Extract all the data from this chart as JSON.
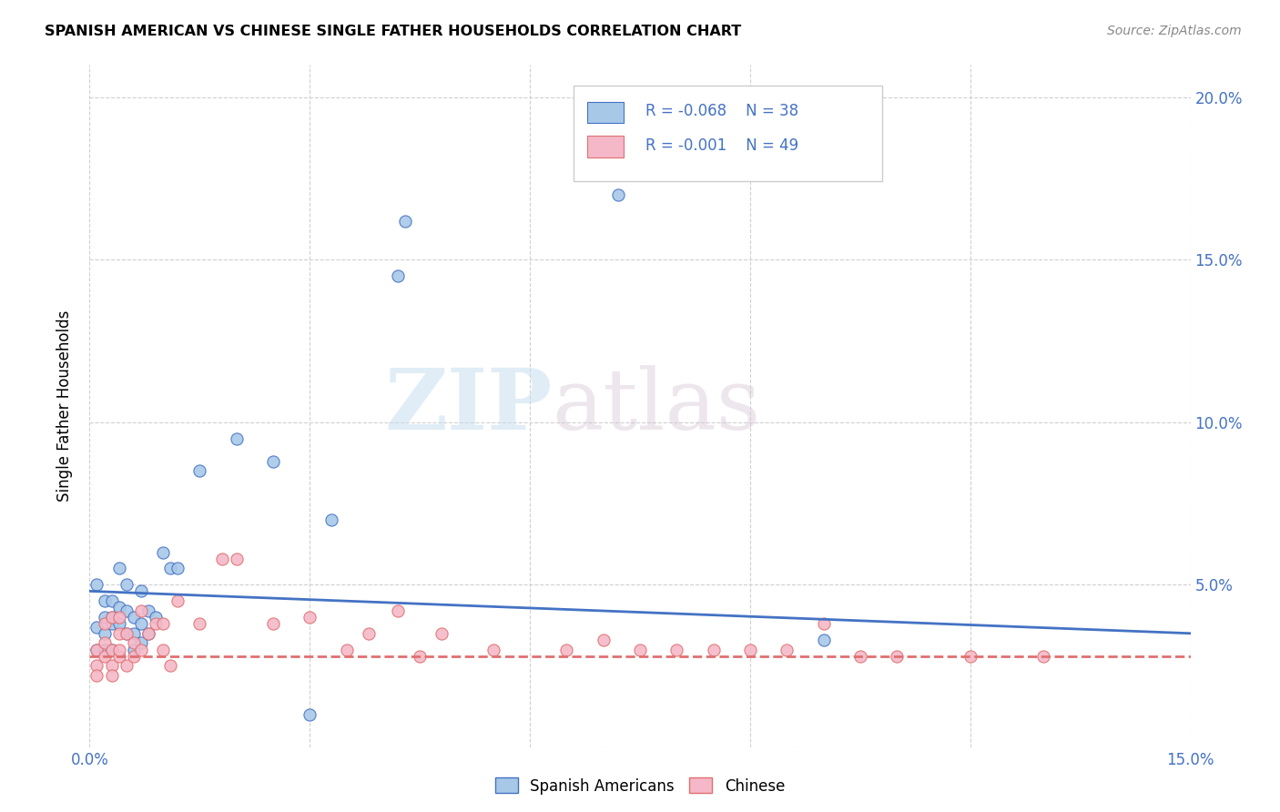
{
  "title": "SPANISH AMERICAN VS CHINESE SINGLE FATHER HOUSEHOLDS CORRELATION CHART",
  "source": "Source: ZipAtlas.com",
  "ylabel": "Single Father Households",
  "xlim": [
    0.0,
    0.15
  ],
  "ylim": [
    0.0,
    0.21
  ],
  "xticks": [
    0.0,
    0.03,
    0.06,
    0.09,
    0.12,
    0.15
  ],
  "xtick_labels": [
    "0.0%",
    "",
    "",
    "",
    "",
    "15.0%"
  ],
  "yticks": [
    0.0,
    0.05,
    0.1,
    0.15,
    0.2
  ],
  "ytick_labels_right": [
    "",
    "5.0%",
    "10.0%",
    "15.0%",
    "20.0%"
  ],
  "background_color": "#ffffff",
  "watermark_zip": "ZIP",
  "watermark_atlas": "atlas",
  "legend_r1": "R = -0.068",
  "legend_n1": "N = 38",
  "legend_r2": "R = -0.001",
  "legend_n2": "N = 49",
  "blue_fill": "#a8c8e8",
  "pink_fill": "#f4b8c8",
  "line_blue": "#4472c4",
  "line_pink": "#e07070",
  "text_blue": "#4472c4",
  "grid_color": "#d0d0d0",
  "blue_trend_start": 0.048,
  "blue_trend_end": 0.035,
  "pink_trend_start": 0.028,
  "pink_trend_end": 0.028,
  "sa_x": [
    0.001,
    0.001,
    0.001,
    0.002,
    0.002,
    0.002,
    0.002,
    0.003,
    0.003,
    0.003,
    0.003,
    0.004,
    0.004,
    0.004,
    0.005,
    0.005,
    0.005,
    0.006,
    0.006,
    0.006,
    0.007,
    0.007,
    0.007,
    0.008,
    0.008,
    0.009,
    0.01,
    0.011,
    0.012,
    0.015,
    0.02,
    0.025,
    0.03,
    0.033,
    0.042,
    0.043,
    0.072,
    0.1
  ],
  "sa_y": [
    0.037,
    0.05,
    0.03,
    0.04,
    0.035,
    0.03,
    0.045,
    0.038,
    0.03,
    0.045,
    0.04,
    0.055,
    0.038,
    0.043,
    0.05,
    0.035,
    0.042,
    0.04,
    0.03,
    0.035,
    0.038,
    0.032,
    0.048,
    0.042,
    0.035,
    0.04,
    0.06,
    0.055,
    0.055,
    0.085,
    0.095,
    0.088,
    0.01,
    0.07,
    0.145,
    0.162,
    0.17,
    0.033
  ],
  "ch_x": [
    0.001,
    0.001,
    0.001,
    0.002,
    0.002,
    0.002,
    0.003,
    0.003,
    0.003,
    0.003,
    0.004,
    0.004,
    0.004,
    0.004,
    0.005,
    0.005,
    0.006,
    0.006,
    0.007,
    0.007,
    0.008,
    0.009,
    0.01,
    0.01,
    0.011,
    0.012,
    0.015,
    0.018,
    0.02,
    0.025,
    0.03,
    0.035,
    0.038,
    0.042,
    0.045,
    0.048,
    0.055,
    0.065,
    0.07,
    0.075,
    0.08,
    0.085,
    0.09,
    0.095,
    0.1,
    0.105,
    0.11,
    0.12,
    0.13
  ],
  "ch_y": [
    0.03,
    0.025,
    0.022,
    0.032,
    0.028,
    0.038,
    0.025,
    0.03,
    0.022,
    0.04,
    0.028,
    0.035,
    0.04,
    0.03,
    0.025,
    0.035,
    0.028,
    0.032,
    0.042,
    0.03,
    0.035,
    0.038,
    0.03,
    0.038,
    0.025,
    0.045,
    0.038,
    0.058,
    0.058,
    0.038,
    0.04,
    0.03,
    0.035,
    0.042,
    0.028,
    0.035,
    0.03,
    0.03,
    0.033,
    0.03,
    0.03,
    0.03,
    0.03,
    0.03,
    0.038,
    0.028,
    0.028,
    0.028,
    0.028
  ]
}
